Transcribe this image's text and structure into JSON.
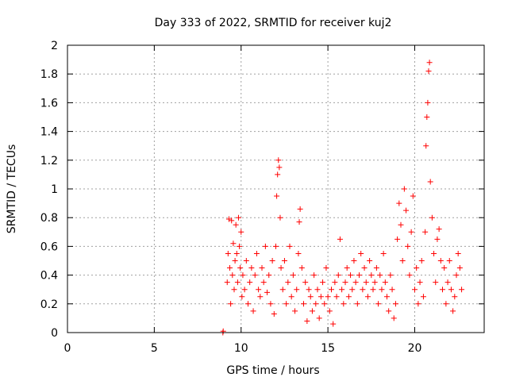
{
  "chart_data": {
    "type": "scatter",
    "title": "Day 333 of 2022, SRMTID for receiver kuj2",
    "xlabel": "GPS time / hours",
    "ylabel": "SRMTID / TECUs",
    "xlim": [
      0,
      24
    ],
    "ylim": [
      0,
      2
    ],
    "xticks": [
      0,
      5,
      10,
      15,
      20
    ],
    "xtick_labels": [
      "0",
      "5",
      "10",
      "15",
      "20"
    ],
    "yticks": [
      0,
      0.2,
      0.4,
      0.6,
      0.8,
      1.0,
      1.2,
      1.4,
      1.6,
      1.8,
      2.0
    ],
    "ytick_labels": [
      "0",
      "0.2",
      "0.4",
      "0.6",
      "0.8",
      "1",
      "1.2",
      "1.4",
      "1.6",
      "1.8",
      "2"
    ],
    "grid": true,
    "marker": "plus",
    "series": [
      {
        "name": "kuj2",
        "color": "#ff0000",
        "x": [
          8.95,
          8.97,
          9.2,
          9.25,
          9.3,
          9.35,
          9.4,
          9.45,
          9.5,
          9.55,
          9.6,
          9.65,
          9.7,
          9.75,
          9.8,
          9.85,
          9.9,
          9.95,
          10.0,
          10.05,
          10.1,
          10.2,
          10.3,
          10.4,
          10.5,
          10.6,
          10.7,
          10.8,
          10.9,
          11.0,
          11.1,
          11.2,
          11.3,
          11.4,
          11.5,
          11.6,
          11.7,
          11.8,
          11.9,
          12.0,
          12.05,
          12.1,
          12.15,
          12.2,
          12.25,
          12.3,
          12.4,
          12.5,
          12.6,
          12.7,
          12.8,
          12.9,
          13.0,
          13.1,
          13.2,
          13.3,
          13.35,
          13.4,
          13.5,
          13.6,
          13.7,
          13.8,
          13.9,
          14.0,
          14.1,
          14.2,
          14.3,
          14.4,
          14.5,
          14.6,
          14.7,
          14.8,
          14.9,
          15.0,
          15.1,
          15.2,
          15.3,
          15.4,
          15.5,
          15.6,
          15.7,
          15.8,
          15.9,
          16.0,
          16.1,
          16.2,
          16.3,
          16.4,
          16.5,
          16.6,
          16.7,
          16.8,
          16.9,
          17.0,
          17.1,
          17.2,
          17.3,
          17.4,
          17.5,
          17.6,
          17.7,
          17.8,
          17.9,
          18.0,
          18.1,
          18.2,
          18.3,
          18.4,
          18.5,
          18.6,
          18.7,
          18.8,
          18.9,
          19.0,
          19.1,
          19.2,
          19.3,
          19.4,
          19.5,
          19.6,
          19.7,
          19.8,
          19.9,
          20.0,
          20.1,
          20.2,
          20.3,
          20.4,
          20.5,
          20.6,
          20.65,
          20.7,
          20.75,
          20.8,
          20.85,
          20.9,
          21.0,
          21.1,
          21.2,
          21.3,
          21.4,
          21.5,
          21.6,
          21.7,
          21.8,
          21.9,
          22.0,
          22.1,
          22.2,
          22.3,
          22.4,
          22.5,
          22.6,
          22.7
        ],
        "y": [
          0.0,
          0.01,
          0.35,
          0.55,
          0.79,
          0.45,
          0.2,
          0.78,
          0.4,
          0.62,
          0.3,
          0.5,
          0.75,
          0.55,
          0.35,
          0.8,
          0.6,
          0.45,
          0.7,
          0.25,
          0.4,
          0.3,
          0.5,
          0.2,
          0.35,
          0.45,
          0.15,
          0.4,
          0.55,
          0.3,
          0.25,
          0.45,
          0.35,
          0.6,
          0.28,
          0.4,
          0.2,
          0.5,
          0.13,
          0.6,
          0.95,
          1.1,
          1.2,
          1.15,
          0.8,
          0.45,
          0.3,
          0.5,
          0.2,
          0.35,
          0.6,
          0.25,
          0.4,
          0.15,
          0.3,
          0.55,
          0.77,
          0.86,
          0.45,
          0.2,
          0.35,
          0.08,
          0.3,
          0.25,
          0.15,
          0.4,
          0.2,
          0.3,
          0.1,
          0.25,
          0.35,
          0.2,
          0.45,
          0.25,
          0.15,
          0.3,
          0.06,
          0.35,
          0.25,
          0.4,
          0.65,
          0.3,
          0.2,
          0.35,
          0.45,
          0.25,
          0.4,
          0.3,
          0.5,
          0.35,
          0.2,
          0.4,
          0.55,
          0.3,
          0.45,
          0.35,
          0.25,
          0.5,
          0.4,
          0.3,
          0.35,
          0.45,
          0.2,
          0.4,
          0.3,
          0.55,
          0.35,
          0.25,
          0.15,
          0.4,
          0.3,
          0.1,
          0.2,
          0.65,
          0.9,
          0.75,
          0.5,
          1.0,
          0.85,
          0.6,
          0.4,
          0.7,
          0.95,
          0.3,
          0.45,
          0.2,
          0.35,
          0.5,
          0.25,
          0.7,
          1.3,
          1.5,
          1.6,
          1.82,
          1.88,
          1.05,
          0.8,
          0.55,
          0.35,
          0.65,
          0.72,
          0.5,
          0.3,
          0.45,
          0.2,
          0.35,
          0.5,
          0.3,
          0.15,
          0.25,
          0.4,
          0.55,
          0.45,
          0.3
        ]
      }
    ]
  }
}
